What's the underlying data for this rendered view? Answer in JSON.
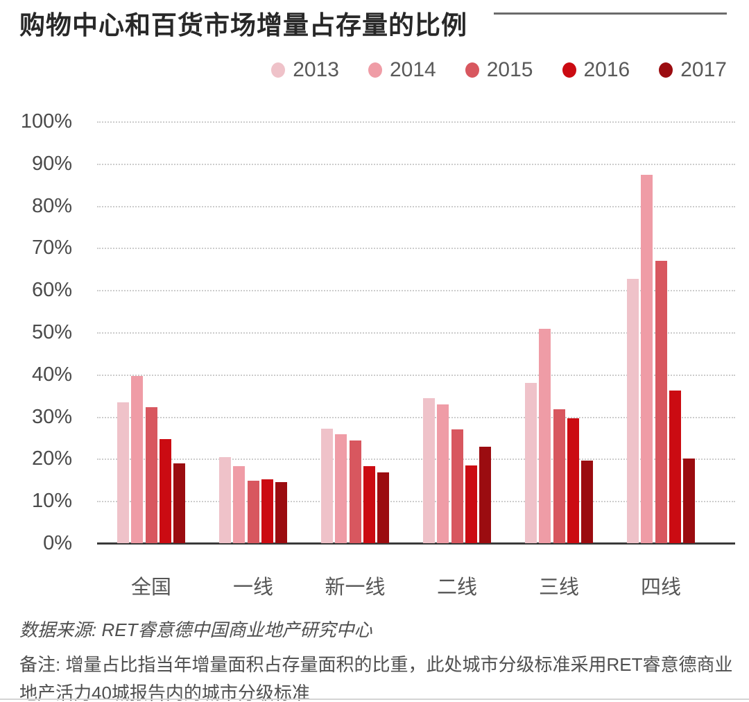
{
  "title": "购物中心和百货市场增量占存量的比例",
  "chart_data": {
    "type": "bar",
    "categories": [
      "全国",
      "一线",
      "新一线",
      "二线",
      "三线",
      "四线"
    ],
    "series": [
      {
        "name": "2013",
        "color": "#EFC2C9",
        "values": [
          33.4,
          20.4,
          27.1,
          34.4,
          38.0,
          62.6
        ]
      },
      {
        "name": "2014",
        "color": "#EF9CA6",
        "values": [
          39.6,
          18.3,
          25.9,
          32.9,
          50.9,
          87.3
        ]
      },
      {
        "name": "2015",
        "color": "#D8575F",
        "values": [
          32.2,
          14.8,
          24.4,
          27.0,
          31.7,
          67.0
        ]
      },
      {
        "name": "2016",
        "color": "#CB0B12",
        "values": [
          24.6,
          15.2,
          18.2,
          18.4,
          29.6,
          36.2
        ]
      },
      {
        "name": "2017",
        "color": "#9B0C10",
        "values": [
          18.9,
          14.4,
          16.8,
          22.9,
          19.5,
          20.0
        ]
      }
    ],
    "title": "购物中心和百货市场增量占存量的比例",
    "xlabel": "",
    "ylabel": "",
    "ylim": [
      0,
      100
    ],
    "y_ticks": [
      "0%",
      "10%",
      "20%",
      "30%",
      "40%",
      "50%",
      "60%",
      "70%",
      "80%",
      "90%",
      "100%"
    ],
    "grid": "horizontal-dotted",
    "legend_position": "top-right"
  },
  "footer": {
    "source": "数据来源: RET睿意德中国商业地产研究中心",
    "note": "备注: 增量占比指当年增量面积占存量面积的比重，此处城市分级标准采用RET睿意德商业地产活力40城报告内的城市分级标准"
  },
  "style": {
    "accent_dark_red": "#9B0C10",
    "accent_red": "#CB0B12",
    "title_color": "#282828",
    "axis_text_color": "#555555",
    "grid_color": "#CCCCCC"
  }
}
